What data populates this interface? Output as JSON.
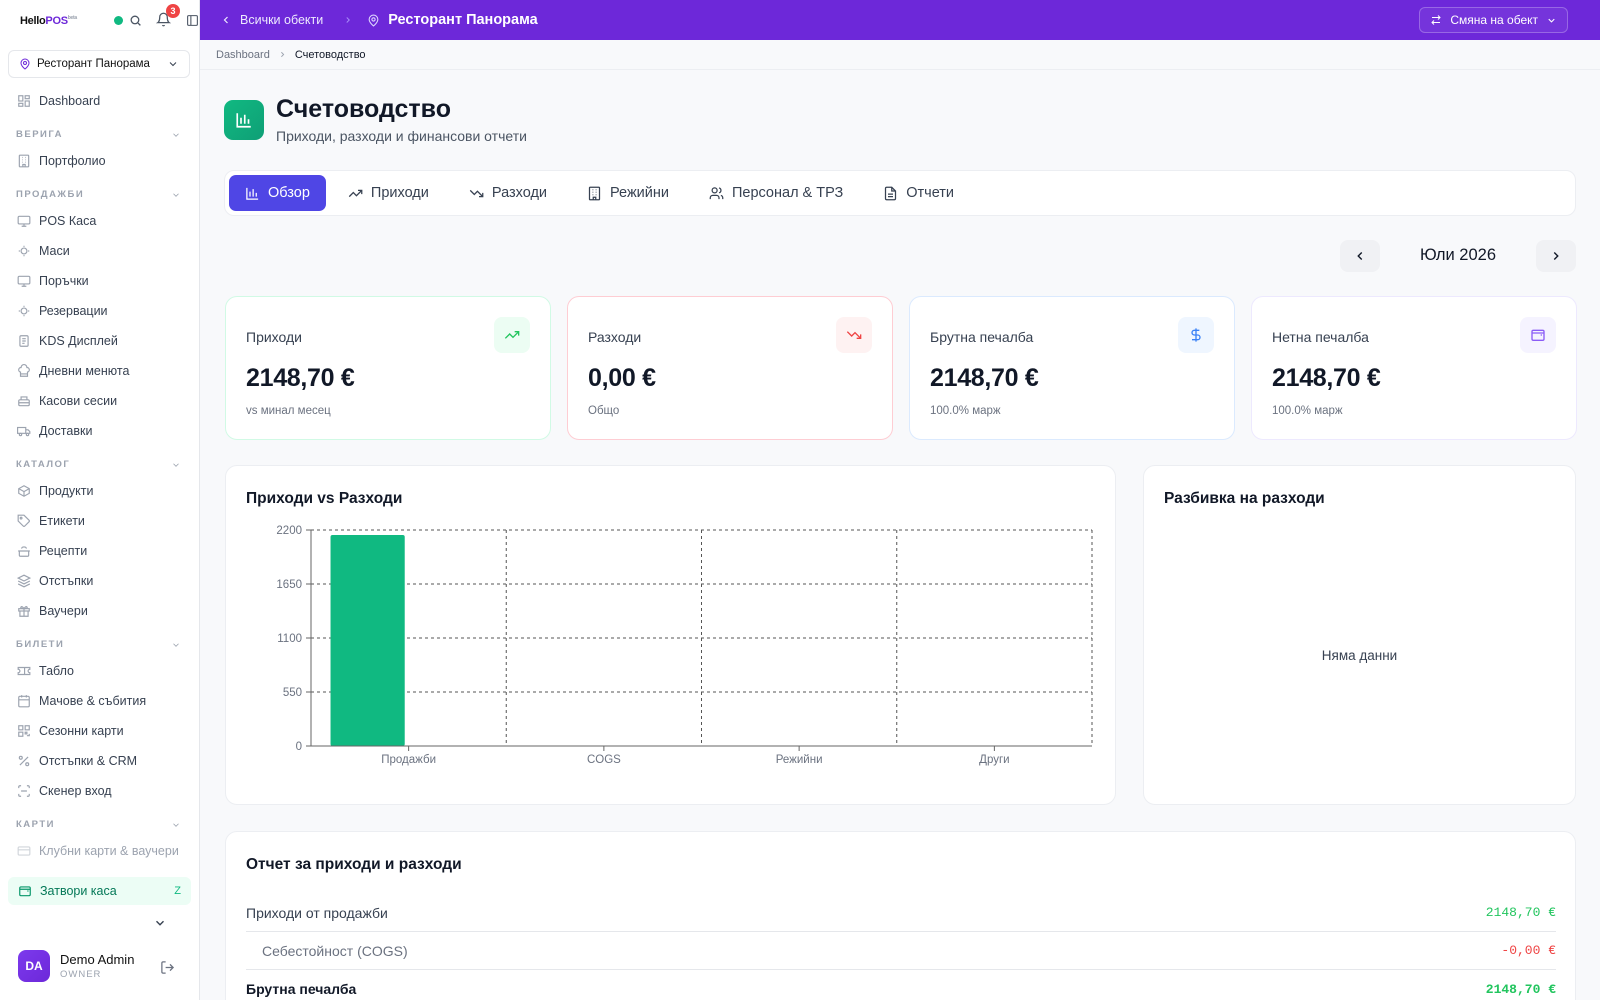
{
  "sidebar": {
    "logo": {
      "hello": "Hello",
      "pos": "POS",
      "tm": "beta"
    },
    "notifications_count": "3",
    "venue": "Ресторант Панорама",
    "dashboard": "Dashboard",
    "sections": [
      {
        "title": "ВЕРИГА",
        "items": [
          "Портфолио"
        ]
      },
      {
        "title": "ПРОДАЖБИ",
        "items": [
          "POS Каса",
          "Маси",
          "Поръчки",
          "Резервации",
          "KDS Дисплей",
          "Дневни менюта",
          "Касови сесии",
          "Доставки"
        ]
      },
      {
        "title": "КАТАЛОГ",
        "items": [
          "Продукти",
          "Етикети",
          "Рецепти",
          "Отстъпки",
          "Ваучери"
        ]
      },
      {
        "title": "БИЛЕТИ",
        "items": [
          "Табло",
          "Мачове & събития",
          "Сезонни карти",
          "Отстъпки & CRM",
          "Скенер вход"
        ]
      },
      {
        "title": "КАРТИ",
        "items": [
          "Клубни карти & ваучери"
        ]
      }
    ],
    "close_register": {
      "label": "Затвори каса",
      "shortcut": "Z"
    },
    "user": {
      "initials": "DA",
      "name": "Demo Admin",
      "role": "OWNER"
    }
  },
  "topbar": {
    "back_label": "Всички обекти",
    "venue_title": "Ресторант Панорама",
    "switch_label": "Смяна на обект"
  },
  "breadcrumb": {
    "root": "Dashboard",
    "current": "Счетоводство"
  },
  "page": {
    "title": "Счетоводство",
    "subtitle": "Приходи, разходи и финансови отчети"
  },
  "tabs": [
    "Обзор",
    "Приходи",
    "Разходи",
    "Режийни",
    "Персонал & ТРЗ",
    "Отчети"
  ],
  "month": "Юли 2026",
  "kpis": [
    {
      "label": "Приходи",
      "value": "2148,70 €",
      "note": "vs минал месец",
      "icon": "trending-up-icon",
      "color": "#22c55e",
      "bg": "#ecfdf3"
    },
    {
      "label": "Разходи",
      "value": "0,00 €",
      "note": "Общо",
      "icon": "trending-down-icon",
      "color": "#ef4444",
      "bg": "#fef2f2"
    },
    {
      "label": "Брутна печалба",
      "value": "2148,70 €",
      "note": "100.0% марж",
      "icon": "dollar-icon",
      "color": "#3b82f6",
      "bg": "#eff6ff"
    },
    {
      "label": "Нетна печалба",
      "value": "2148,70 €",
      "note": "100.0% марж",
      "icon": "wallet-icon",
      "color": "#8b5cf6",
      "bg": "#f5f3ff"
    }
  ],
  "chart_card": {
    "title": "Приходи vs Разходи"
  },
  "chart_data": {
    "type": "bar",
    "title": "Приходи vs Разходи",
    "categories": [
      "Продажби",
      "COGS",
      "Режийни",
      "Други"
    ],
    "values": [
      2148.7,
      0,
      0,
      0
    ],
    "ylim": [
      0,
      2200
    ],
    "yticks": [
      0,
      550,
      1100,
      1650,
      2200
    ],
    "grid": true,
    "bar_color": "#10b981"
  },
  "breakdown_card": {
    "title": "Разбивка на разходи",
    "empty": "Няма данни"
  },
  "report": {
    "title": "Отчет за приходи и разходи",
    "rows": [
      {
        "label": "Приходи от продажби",
        "value": "2148,70 €"
      },
      {
        "label": "Себестойност (COGS)",
        "value": "-0,00 €"
      },
      {
        "label": "Брутна печалба",
        "value": "2148,70 €"
      }
    ]
  }
}
